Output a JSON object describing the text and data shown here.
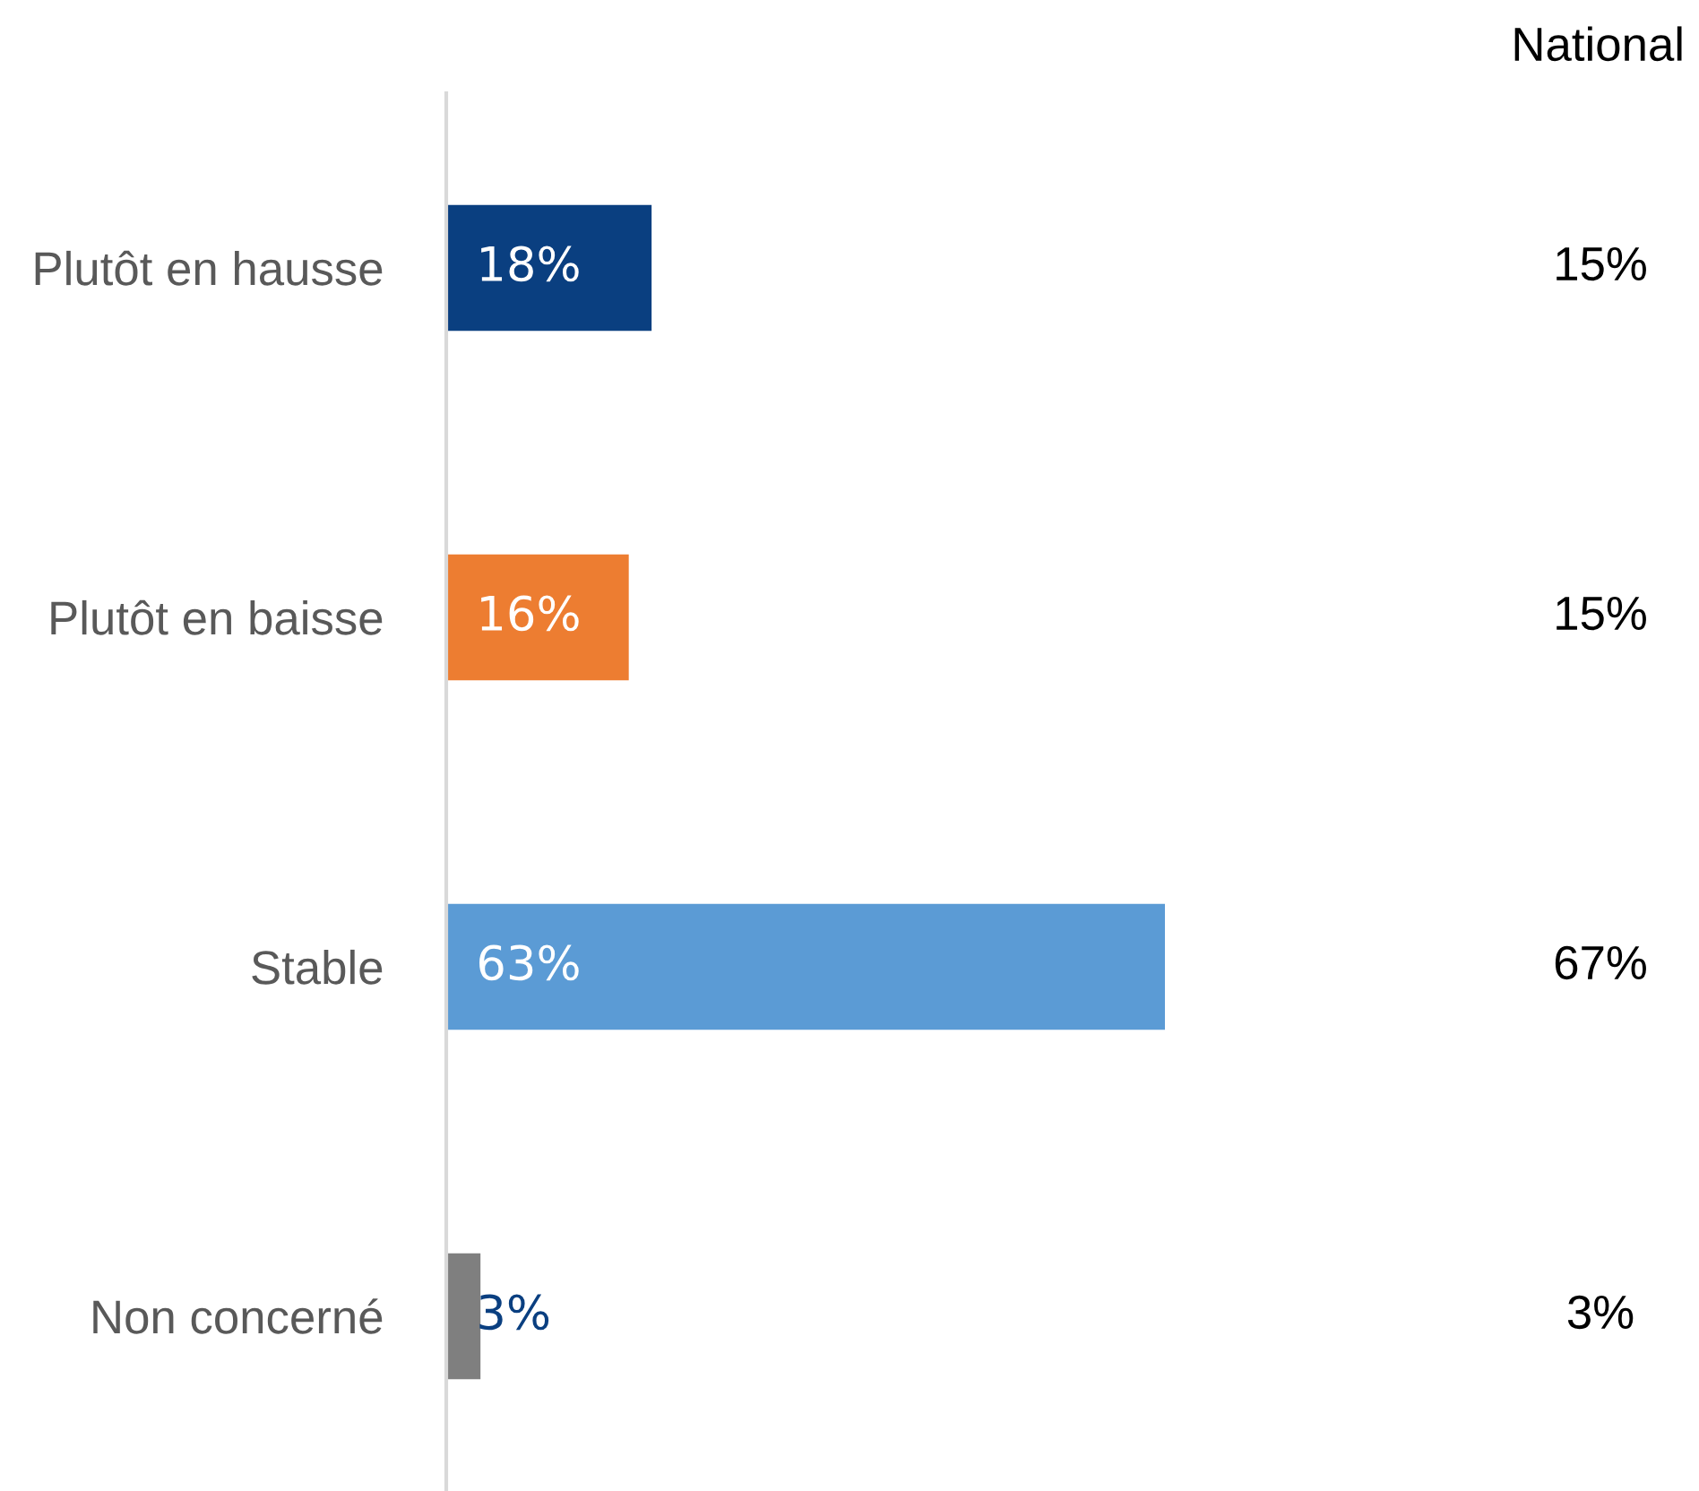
{
  "chart_data": {
    "type": "bar",
    "orientation": "horizontal",
    "categories": [
      "Plutôt en hausse",
      "Plutôt en baisse",
      "Stable",
      "Non concerné"
    ],
    "values": [
      18,
      16,
      63,
      3
    ],
    "colors": [
      "#0a3f80",
      "#ed7d31",
      "#5b9bd5",
      "#7f7f7f"
    ],
    "value_labels": [
      "18%",
      "16%",
      "63%",
      "3%"
    ],
    "grid": false,
    "legend": false,
    "annotations": [
      "National",
      "15%",
      "15%",
      "67%",
      "3%"
    ]
  }
}
